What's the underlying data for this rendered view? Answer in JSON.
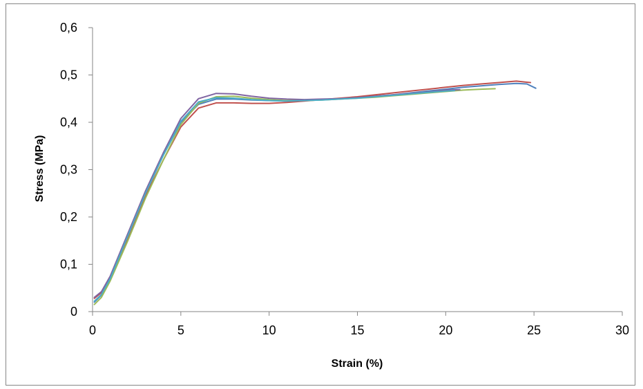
{
  "chart_data": {
    "type": "line",
    "title": "",
    "xlabel": "Strain (%)",
    "ylabel": "Stress (MPa)",
    "xlim": [
      0,
      30
    ],
    "ylim": [
      0,
      0.6
    ],
    "x_ticks": [
      0,
      5,
      10,
      15,
      20,
      25,
      30
    ],
    "x_tick_labels": [
      "0",
      "5",
      "10",
      "15",
      "20",
      "25",
      "30"
    ],
    "y_ticks": [
      0,
      0.1,
      0.2,
      0.3,
      0.4,
      0.5,
      0.6
    ],
    "y_tick_labels": [
      "0",
      "0,1",
      "0,2",
      "0,3",
      "0,4",
      "0,5",
      "0,6"
    ],
    "grid": false,
    "legend": "none",
    "series": [
      {
        "color": "#4F81BD",
        "x": [
          0.1,
          0.5,
          1,
          2,
          3,
          4,
          5,
          6,
          7,
          8,
          9,
          10,
          11,
          12,
          13,
          14,
          15,
          16,
          17,
          18,
          19,
          20,
          21,
          22,
          23,
          24,
          24.6,
          25.1
        ],
        "y": [
          0.02,
          0.035,
          0.07,
          0.16,
          0.25,
          0.33,
          0.4,
          0.438,
          0.449,
          0.449,
          0.447,
          0.446,
          0.445,
          0.446,
          0.448,
          0.45,
          0.452,
          0.455,
          0.458,
          0.462,
          0.466,
          0.47,
          0.474,
          0.477,
          0.48,
          0.482,
          0.481,
          0.472
        ]
      },
      {
        "color": "#C0504D",
        "x": [
          0.1,
          0.5,
          1,
          2,
          3,
          4,
          5,
          6,
          7,
          8,
          9,
          10,
          11,
          12,
          13,
          14,
          15,
          16,
          17,
          18,
          19,
          20,
          21,
          22,
          23,
          24,
          24.8
        ],
        "y": [
          0.028,
          0.04,
          0.07,
          0.155,
          0.245,
          0.32,
          0.39,
          0.43,
          0.441,
          0.441,
          0.44,
          0.44,
          0.442,
          0.445,
          0.448,
          0.451,
          0.454,
          0.458,
          0.462,
          0.466,
          0.47,
          0.474,
          0.478,
          0.481,
          0.484,
          0.487,
          0.484
        ]
      },
      {
        "color": "#9BBB59",
        "x": [
          0.1,
          0.5,
          1,
          2,
          3,
          4,
          5,
          6,
          7,
          8,
          9,
          10,
          11,
          12,
          13,
          14,
          15,
          16,
          17,
          18,
          19,
          20,
          21,
          22,
          22.8
        ],
        "y": [
          0.015,
          0.03,
          0.065,
          0.15,
          0.24,
          0.32,
          0.395,
          0.44,
          0.454,
          0.455,
          0.451,
          0.448,
          0.446,
          0.446,
          0.447,
          0.449,
          0.451,
          0.453,
          0.456,
          0.459,
          0.462,
          0.465,
          0.468,
          0.47,
          0.471
        ]
      },
      {
        "color": "#8064A2",
        "x": [
          0.1,
          0.5,
          1,
          2,
          3,
          4,
          5,
          6,
          7,
          8,
          9,
          10,
          11,
          12,
          13,
          14,
          15,
          16,
          17,
          18,
          19,
          20,
          20.8
        ],
        "y": [
          0.03,
          0.042,
          0.075,
          0.165,
          0.255,
          0.335,
          0.408,
          0.45,
          0.461,
          0.46,
          0.455,
          0.451,
          0.449,
          0.448,
          0.449,
          0.45,
          0.452,
          0.455,
          0.458,
          0.461,
          0.464,
          0.468,
          0.469
        ]
      },
      {
        "color": "#4BACC6",
        "x": [
          0.1,
          0.5,
          1,
          2,
          3,
          4,
          5,
          6,
          7,
          8,
          9,
          10,
          11,
          12,
          13,
          14,
          15,
          16,
          17,
          18,
          19,
          20,
          20.5
        ],
        "y": [
          0.022,
          0.036,
          0.07,
          0.16,
          0.25,
          0.33,
          0.402,
          0.443,
          0.452,
          0.451,
          0.448,
          0.446,
          0.445,
          0.446,
          0.447,
          0.449,
          0.451,
          0.454,
          0.457,
          0.46,
          0.463,
          0.466,
          0.467
        ]
      }
    ]
  }
}
